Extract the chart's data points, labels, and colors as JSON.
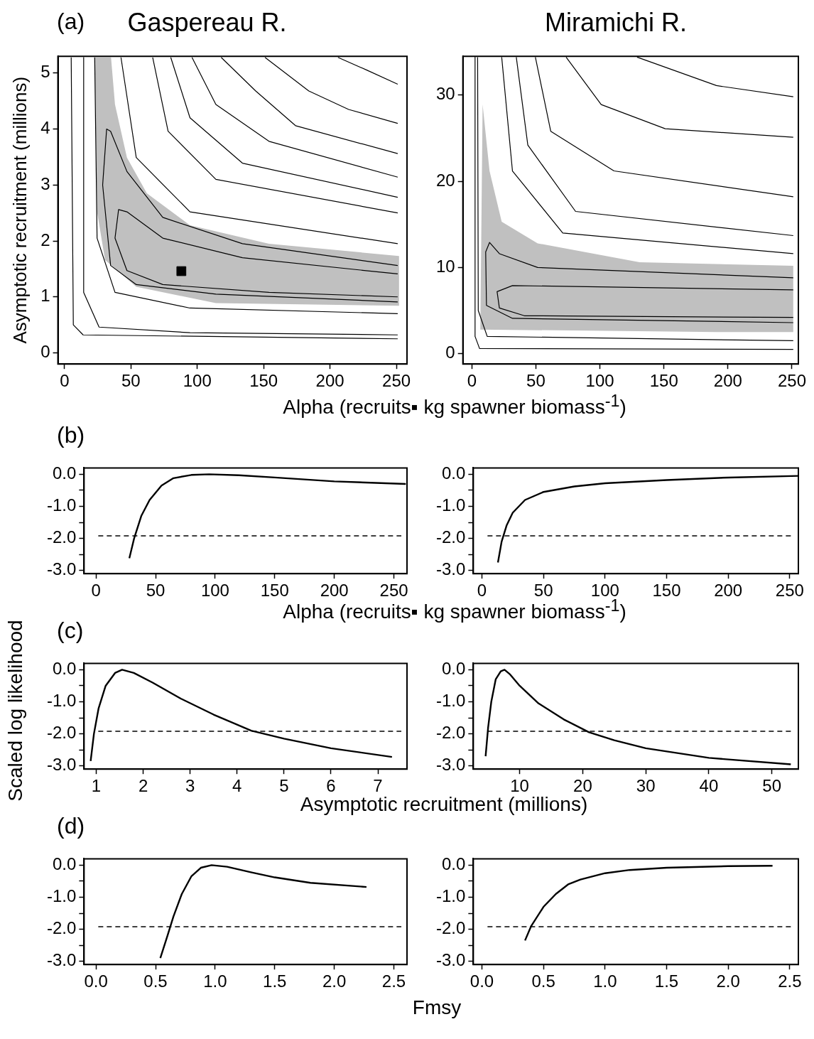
{
  "chart_data": [
    {
      "type": "line",
      "title": "Gaspereau R.",
      "xlabel": "Alpha (recruits▪ kg spawner biomass$^{-1}$)",
      "ylabel": "Asymptotic recruitment (millions)",
      "annotations": [
        "(a)"
      ],
      "xlim": [
        -5,
        258
      ],
      "ylim": [
        -0.2,
        5.3
      ],
      "xticks": [
        0,
        50,
        100,
        150,
        200,
        250
      ],
      "yticks": [
        0,
        1,
        2,
        3,
        4,
        5
      ],
      "grid": false,
      "legend": false,
      "series": [
        {
          "type": "area",
          "color": "#c0c0c0",
          "x": [
            22.7,
            35,
            38,
            47,
            62,
            94.5,
            154,
            252,
            252,
            114,
            54,
            30.5,
            24.5,
            22.7
          ],
          "values": [
            5.28,
            5.28,
            4.44,
            3.49,
            2.85,
            2.28,
            1.95,
            1.73,
            0.84,
            0.89,
            1.18,
            1.66,
            2.52,
            5.28
          ]
        },
        {
          "color": "#000000",
          "x": [
            206,
            228,
            251
          ],
          "values": [
            5.28,
            5.05,
            4.8
          ]
        },
        {
          "color": "#000000",
          "x": [
            151,
            184,
            214,
            251
          ],
          "values": [
            5.28,
            4.68,
            4.35,
            4.1
          ]
        },
        {
          "color": "#000000",
          "x": [
            118,
            144,
            174,
            251
          ],
          "values": [
            5.28,
            4.68,
            4.06,
            3.56
          ]
        },
        {
          "color": "#000000",
          "x": [
            96,
            114,
            154,
            251
          ],
          "values": [
            5.28,
            4.44,
            3.78,
            3.14
          ]
        },
        {
          "color": "#000000",
          "x": [
            80,
            94.5,
            134,
            251
          ],
          "values": [
            5.28,
            4.2,
            3.39,
            2.78
          ]
        },
        {
          "color": "#000000",
          "x": [
            66.4,
            78,
            114,
            251
          ],
          "values": [
            5.28,
            3.96,
            3.1,
            2.5
          ]
        },
        {
          "color": "#000000",
          "x": [
            42.5,
            54,
            94.5,
            251
          ],
          "values": [
            5.28,
            3.49,
            2.52,
            1.95
          ]
        },
        {
          "color": "#000000",
          "x": [
            251,
            134,
            74,
            47,
            34.7,
            31.7,
            28.7,
            34.7,
            54,
            114,
            251
          ],
          "values": [
            1.56,
            1.95,
            2.42,
            3.24,
            3.96,
            4.0,
            3.0,
            1.56,
            1.22,
            1.05,
            0.91
          ]
        },
        {
          "color": "#000000",
          "x": [
            251,
            134,
            74,
            47,
            40.7,
            38,
            47,
            74,
            154,
            251
          ],
          "values": [
            1.41,
            1.7,
            2.05,
            2.52,
            2.56,
            2.05,
            1.47,
            1.22,
            1.08,
            1.0
          ]
        },
        {
          "color": "#000000",
          "x": [
            22.7,
            24.5,
            38,
            94.5,
            251
          ],
          "values": [
            5.28,
            2.05,
            1.08,
            0.8,
            0.7
          ]
        },
        {
          "color": "#000000",
          "x": [
            14.4,
            14.4,
            26,
            94.5,
            251
          ],
          "values": [
            5.28,
            1.08,
            0.46,
            0.36,
            0.32
          ]
        },
        {
          "color": "#000000",
          "x": [
            5,
            6.6,
            14,
            251
          ],
          "values": [
            5.28,
            0.5,
            0.32,
            0.25
          ]
        },
        {
          "type": "scatter",
          "color": "#000000",
          "marker": "square",
          "x": [
            88
          ],
          "values": [
            1.46
          ]
        }
      ]
    },
    {
      "type": "line",
      "title": "Miramichi R.",
      "xlim": [
        -7,
        255
      ],
      "ylim": [
        -1.2,
        34.5
      ],
      "xticks": [
        0,
        50,
        100,
        150,
        200,
        250
      ],
      "yticks": [
        0,
        10,
        20,
        30
      ],
      "grid": false,
      "legend": false,
      "series": [
        {
          "type": "area",
          "color": "#c0c0c0",
          "x": [
            8.4,
            6.6,
            191,
            251,
            251,
            131,
            51.4,
            23.3,
            13.8,
            8.4
          ],
          "values": [
            28.9,
            2.8,
            2.5,
            2.5,
            10.2,
            10.6,
            12.8,
            15.3,
            21.2,
            28.9
          ]
        },
        {
          "color": "#000000",
          "x": [
            129,
            191,
            251
          ],
          "values": [
            34.4,
            31.1,
            29.8
          ]
        },
        {
          "color": "#000000",
          "x": [
            73.6,
            101,
            151,
            251
          ],
          "values": [
            34.4,
            28.9,
            26.1,
            25.1
          ]
        },
        {
          "color": "#000000",
          "x": [
            49.6,
            61.6,
            111,
            251
          ],
          "values": [
            34.4,
            25.8,
            21.2,
            18.2
          ]
        },
        {
          "color": "#000000",
          "x": [
            34.7,
            43.7,
            81,
            251
          ],
          "values": [
            34.4,
            24.2,
            16.5,
            13.7
          ]
        },
        {
          "color": "#000000",
          "x": [
            23.3,
            31.7,
            71,
            251
          ],
          "values": [
            34.4,
            21.2,
            14,
            11.6
          ]
        },
        {
          "color": "#000000",
          "x": [
            251,
            51.4,
            21.5,
            13.8,
            10.8,
            11.4,
            31.7,
            251
          ],
          "values": [
            8.8,
            10,
            11.6,
            12.9,
            11.8,
            5.6,
            4.1,
            3.6
          ]
        },
        {
          "color": "#000000",
          "x": [
            251,
            31.7,
            19.7,
            21.5,
            41,
            251
          ],
          "values": [
            7.4,
            7.9,
            7.2,
            5.3,
            4.4,
            4.2
          ]
        },
        {
          "color": "#000000",
          "x": [
            2.5,
            2.5,
            6,
            251
          ],
          "values": [
            34.4,
            2,
            0.6,
            0.5
          ]
        },
        {
          "color": "#000000",
          "x": [
            4.5,
            5,
            12,
            251
          ],
          "values": [
            34.4,
            5,
            2,
            1.5
          ]
        }
      ]
    },
    {
      "type": "line",
      "xlabel": "Alpha (recruits▪ kg spawner biomass$^{-1}$)",
      "annotations": [
        "(b)"
      ],
      "xlim": [
        -10,
        261
      ],
      "ylim": [
        -3.1,
        0.2
      ],
      "xticks": [
        0,
        50,
        100,
        150,
        200,
        250
      ],
      "yticks": [
        {
          "value": 0,
          "label": "0.0"
        },
        {
          "value": -0.5,
          "label": null
        },
        {
          "value": -1,
          "label": "-1.0"
        },
        {
          "value": -1.5,
          "label": null
        },
        {
          "value": -2,
          "label": "-2.0"
        },
        {
          "value": -2.5,
          "label": null
        },
        {
          "value": -3,
          "label": "-3.0"
        }
      ],
      "grid": false,
      "legend": false,
      "ref_lines": [
        {
          "axis": "y",
          "value": -1.92,
          "line_style": "dashed",
          "color": "#000000"
        }
      ],
      "series": [
        {
          "color": "#000000",
          "x": [
            28,
            32,
            38,
            45,
            55,
            65,
            80,
            95,
            120,
            150,
            200,
            260
          ],
          "values": [
            -2.62,
            -2.0,
            -1.3,
            -0.8,
            -0.35,
            -0.12,
            -0.02,
            0,
            -0.03,
            -0.1,
            -0.22,
            -0.3
          ]
        }
      ]
    },
    {
      "type": "line",
      "xlim": [
        -7,
        257
      ],
      "ylim": [
        -3.1,
        0.2
      ],
      "xticks": [
        0,
        50,
        100,
        150,
        200,
        250
      ],
      "yticks": [
        {
          "value": 0,
          "label": "0.0"
        },
        {
          "value": -0.5,
          "label": null
        },
        {
          "value": -1,
          "label": "-1.0"
        },
        {
          "value": -1.5,
          "label": null
        },
        {
          "value": -2,
          "label": "-2.0"
        },
        {
          "value": -2.5,
          "label": null
        },
        {
          "value": -3,
          "label": "-3.0"
        }
      ],
      "grid": false,
      "legend": false,
      "ref_lines": [
        {
          "axis": "y",
          "value": -1.92,
          "line_style": "dashed",
          "color": "#000000"
        }
      ],
      "series": [
        {
          "color": "#000000",
          "x": [
            13,
            16,
            20,
            25,
            35,
            50,
            75,
            100,
            150,
            200,
            257
          ],
          "values": [
            -2.75,
            -2.1,
            -1.6,
            -1.2,
            -0.8,
            -0.55,
            -0.38,
            -0.28,
            -0.18,
            -0.1,
            -0.05
          ]
        }
      ]
    },
    {
      "type": "line",
      "xlabel": "Asymptotic recruitment (millions)",
      "ylabel": "Scaled log likelihood",
      "annotations": [
        "(c)"
      ],
      "xlim": [
        0.74,
        7.62
      ],
      "ylim": [
        -3.1,
        0.2
      ],
      "xticks": [
        1,
        2,
        3,
        4,
        5,
        6,
        7
      ],
      "yticks": [
        {
          "value": 0,
          "label": "0.0"
        },
        {
          "value": -0.5,
          "label": null
        },
        {
          "value": -1,
          "label": "-1.0"
        },
        {
          "value": -1.5,
          "label": null
        },
        {
          "value": -2,
          "label": "-2.0"
        },
        {
          "value": -2.5,
          "label": null
        },
        {
          "value": -3,
          "label": "-3.0"
        }
      ],
      "grid": false,
      "legend": false,
      "ref_lines": [
        {
          "axis": "y",
          "value": -1.92,
          "line_style": "dashed",
          "color": "#000000"
        }
      ],
      "series": [
        {
          "color": "#000000",
          "x": [
            0.88,
            0.95,
            1.05,
            1.2,
            1.4,
            1.55,
            1.8,
            2.2,
            2.8,
            3.5,
            4.3,
            5,
            6,
            7.3
          ],
          "values": [
            -2.85,
            -2.0,
            -1.2,
            -0.5,
            -0.1,
            0,
            -0.1,
            -0.4,
            -0.9,
            -1.4,
            -1.9,
            -2.15,
            -2.45,
            -2.72
          ]
        }
      ]
    },
    {
      "type": "line",
      "xlim": [
        2.65,
        54.2
      ],
      "ylim": [
        -3.1,
        0.2
      ],
      "xticks": [
        10,
        20,
        30,
        40,
        50
      ],
      "yticks": [
        {
          "value": 0,
          "label": "0.0"
        },
        {
          "value": -0.5,
          "label": null
        },
        {
          "value": -1,
          "label": "-1.0"
        },
        {
          "value": -1.5,
          "label": null
        },
        {
          "value": -2,
          "label": "-2.0"
        },
        {
          "value": -2.5,
          "label": null
        },
        {
          "value": -3,
          "label": "-3.0"
        }
      ],
      "grid": false,
      "legend": false,
      "ref_lines": [
        {
          "axis": "y",
          "value": -1.92,
          "line_style": "dashed",
          "color": "#000000"
        }
      ],
      "series": [
        {
          "color": "#000000",
          "x": [
            4.6,
            5,
            5.5,
            6.2,
            7,
            7.6,
            8.5,
            10,
            13,
            17,
            21,
            25,
            30,
            40,
            53
          ],
          "values": [
            -2.7,
            -1.8,
            -1.0,
            -0.3,
            -0.05,
            0,
            -0.15,
            -0.5,
            -1.05,
            -1.55,
            -1.95,
            -2.2,
            -2.45,
            -2.75,
            -2.95
          ]
        }
      ]
    },
    {
      "type": "line",
      "xlabel": "Fmsy",
      "annotations": [
        "(d)"
      ],
      "xlim": [
        -0.1,
        2.61
      ],
      "ylim": [
        -3.1,
        0.2
      ],
      "xticks": [
        {
          "value": 0,
          "label": "0.0"
        },
        {
          "value": 0.5,
          "label": "0.5"
        },
        {
          "value": 1,
          "label": "1.0"
        },
        {
          "value": 1.5,
          "label": "1.5"
        },
        {
          "value": 2,
          "label": "2.0"
        },
        {
          "value": 2.5,
          "label": "2.5"
        }
      ],
      "yticks": [
        {
          "value": 0,
          "label": "0.0"
        },
        {
          "value": -0.5,
          "label": null
        },
        {
          "value": -1,
          "label": "-1.0"
        },
        {
          "value": -1.5,
          "label": null
        },
        {
          "value": -2,
          "label": "-2.0"
        },
        {
          "value": -2.5,
          "label": null
        },
        {
          "value": -3,
          "label": "-3.0"
        }
      ],
      "grid": false,
      "legend": false,
      "ref_lines": [
        {
          "axis": "y",
          "value": -1.92,
          "line_style": "dashed",
          "color": "#000000"
        }
      ],
      "series": [
        {
          "color": "#000000",
          "x": [
            0.54,
            0.6,
            0.65,
            0.72,
            0.8,
            0.88,
            0.97,
            1.1,
            1.3,
            1.5,
            1.8,
            2.27
          ],
          "values": [
            -2.9,
            -2.2,
            -1.6,
            -0.9,
            -0.35,
            -0.08,
            0,
            -0.05,
            -0.22,
            -0.38,
            -0.55,
            -0.68
          ]
        }
      ]
    },
    {
      "type": "line",
      "xlim": [
        -0.07,
        2.57
      ],
      "ylim": [
        -3.1,
        0.2
      ],
      "xticks": [
        {
          "value": 0,
          "label": "0.0"
        },
        {
          "value": 0.5,
          "label": "0.5"
        },
        {
          "value": 1,
          "label": "1.0"
        },
        {
          "value": 1.5,
          "label": "1.5"
        },
        {
          "value": 2,
          "label": "2.0"
        },
        {
          "value": 2.5,
          "label": "2.5"
        }
      ],
      "yticks": [
        {
          "value": 0,
          "label": "0.0"
        },
        {
          "value": -0.5,
          "label": null
        },
        {
          "value": -1,
          "label": "-1.0"
        },
        {
          "value": -1.5,
          "label": null
        },
        {
          "value": -2,
          "label": "-2.0"
        },
        {
          "value": -2.5,
          "label": null
        },
        {
          "value": -3,
          "label": "-3.0"
        }
      ],
      "grid": false,
      "legend": false,
      "ref_lines": [
        {
          "axis": "y",
          "value": -1.92,
          "line_style": "dashed",
          "color": "#000000"
        }
      ],
      "series": [
        {
          "color": "#000000",
          "x": [
            0.35,
            0.4,
            0.5,
            0.6,
            0.7,
            0.8,
            1.0,
            1.2,
            1.5,
            2.0,
            2.36
          ],
          "values": [
            -2.35,
            -1.9,
            -1.3,
            -0.9,
            -0.6,
            -0.45,
            -0.25,
            -0.15,
            -0.08,
            -0.03,
            -0.02
          ]
        }
      ]
    }
  ]
}
